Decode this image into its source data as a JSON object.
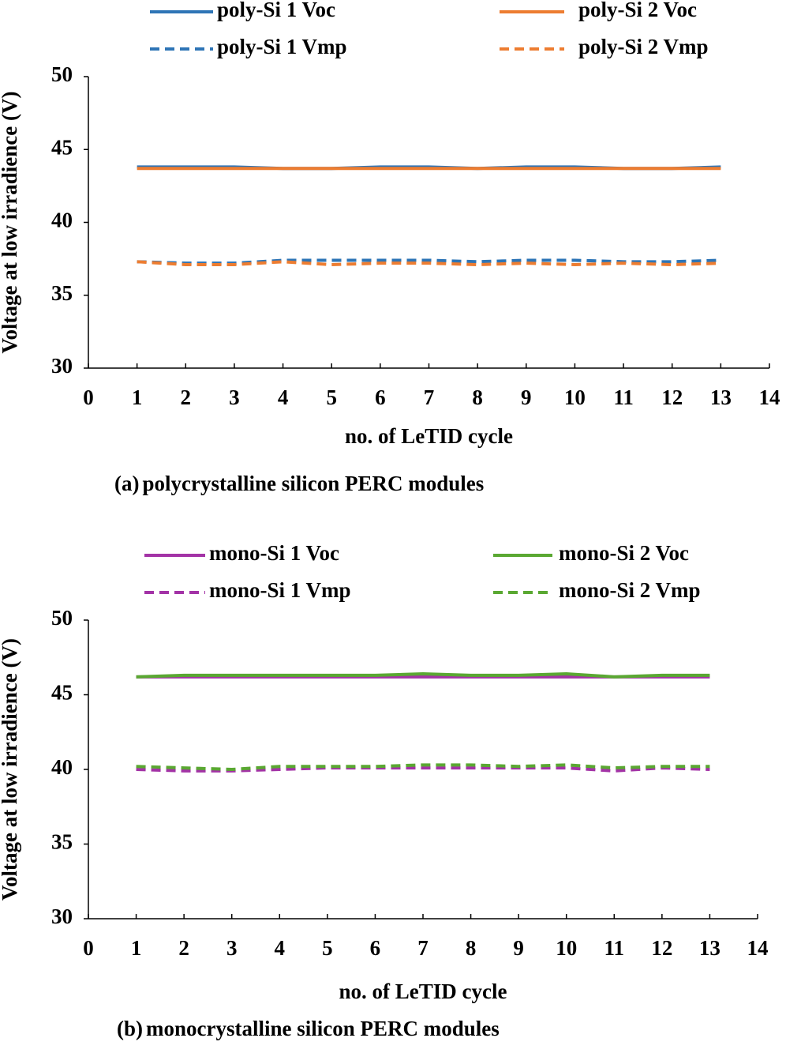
{
  "chart_data": [
    {
      "type": "line",
      "x": [
        1,
        2,
        3,
        4,
        5,
        6,
        7,
        8,
        9,
        10,
        11,
        12,
        13
      ],
      "series": [
        {
          "name": "poly-Si 1 Voc",
          "color": "#2e75b6",
          "dashed": false,
          "values": [
            43.8,
            43.8,
            43.8,
            43.7,
            43.7,
            43.8,
            43.8,
            43.7,
            43.8,
            43.8,
            43.7,
            43.7,
            43.8
          ]
        },
        {
          "name": "poly-Si 2 Voc",
          "color": "#ed7d31",
          "dashed": false,
          "values": [
            43.7,
            43.7,
            43.7,
            43.7,
            43.7,
            43.7,
            43.7,
            43.7,
            43.7,
            43.7,
            43.7,
            43.7,
            43.7
          ]
        },
        {
          "name": "poly-Si 1 Vmp",
          "color": "#2e75b6",
          "dashed": true,
          "values": [
            37.3,
            37.2,
            37.2,
            37.4,
            37.4,
            37.4,
            37.4,
            37.3,
            37.4,
            37.4,
            37.3,
            37.3,
            37.4
          ]
        },
        {
          "name": "poly-Si 2 Vmp",
          "color": "#ed7d31",
          "dashed": true,
          "values": [
            37.3,
            37.1,
            37.1,
            37.3,
            37.1,
            37.2,
            37.2,
            37.1,
            37.2,
            37.1,
            37.2,
            37.1,
            37.2
          ]
        }
      ],
      "xlim": [
        0,
        14
      ],
      "xticks": [
        0,
        1,
        2,
        3,
        4,
        5,
        6,
        7,
        8,
        9,
        10,
        11,
        12,
        13,
        14
      ],
      "ylim": [
        30,
        50
      ],
      "yticks": [
        30,
        35,
        40,
        45,
        50
      ],
      "xlabel": "no. of LeTID cycle",
      "ylabel": "Voltage at low irradience (V)",
      "caption_label": "(a)",
      "caption": "polycrystalline silicon PERC modules"
    },
    {
      "type": "line",
      "x": [
        1,
        2,
        3,
        4,
        5,
        6,
        7,
        8,
        9,
        10,
        11,
        12,
        13
      ],
      "series": [
        {
          "name": "mono-Si 1 Voc",
          "color": "#a333a6",
          "dashed": false,
          "values": [
            46.2,
            46.2,
            46.2,
            46.2,
            46.2,
            46.2,
            46.2,
            46.2,
            46.2,
            46.2,
            46.2,
            46.2,
            46.2
          ]
        },
        {
          "name": "mono-Si 2 Voc",
          "color": "#5aa832",
          "dashed": false,
          "values": [
            46.2,
            46.3,
            46.3,
            46.3,
            46.3,
            46.3,
            46.4,
            46.3,
            46.3,
            46.4,
            46.2,
            46.3,
            46.3
          ]
        },
        {
          "name": "mono-Si 1 Vmp",
          "color": "#a333a6",
          "dashed": true,
          "values": [
            40.0,
            39.9,
            39.9,
            40.0,
            40.1,
            40.1,
            40.1,
            40.1,
            40.1,
            40.1,
            39.9,
            40.1,
            40.0
          ]
        },
        {
          "name": "mono-Si 2 Vmp",
          "color": "#5aa832",
          "dashed": true,
          "values": [
            40.2,
            40.1,
            40.0,
            40.2,
            40.2,
            40.2,
            40.3,
            40.3,
            40.2,
            40.3,
            40.1,
            40.2,
            40.2
          ]
        }
      ],
      "xlim": [
        0,
        14
      ],
      "xticks": [
        0,
        1,
        2,
        3,
        4,
        5,
        6,
        7,
        8,
        9,
        10,
        11,
        12,
        13,
        14
      ],
      "ylim": [
        30,
        50
      ],
      "yticks": [
        30,
        35,
        40,
        45,
        50
      ],
      "xlabel": "no. of LeTID cycle",
      "ylabel": "Voltage at low irradience (V)",
      "caption_label": "(b)",
      "caption": "monocrystalline silicon PERC modules"
    }
  ]
}
